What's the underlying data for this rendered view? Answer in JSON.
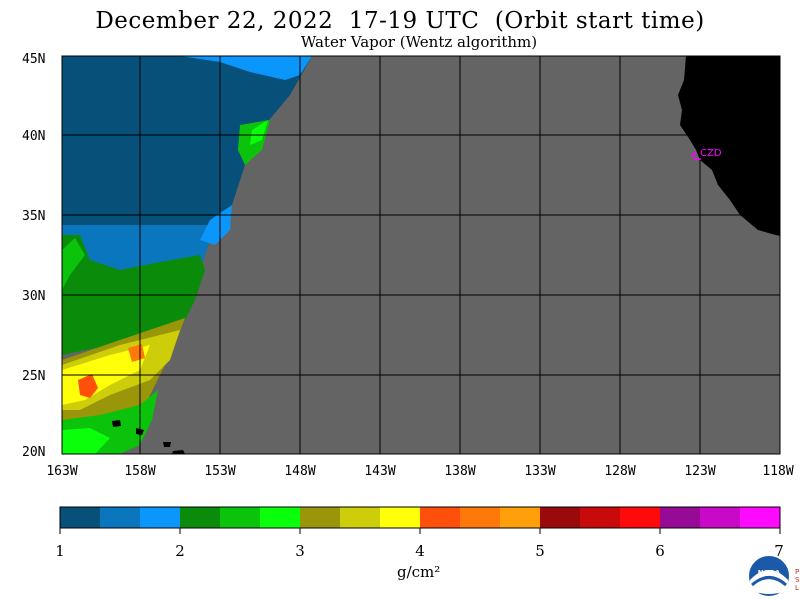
{
  "title": "December 22, 2022  17-19 UTC  (Orbit start time)",
  "subtitle": "Water Vapor (Wentz algorithm)",
  "latitude_labels": [
    "45N",
    "40N",
    "35N",
    "30N",
    "25N",
    "20N"
  ],
  "longitude_labels": [
    "163W",
    "158W",
    "153W",
    "148W",
    "143W",
    "138W",
    "133W",
    "128W",
    "123W",
    "118W"
  ],
  "station_label": "CZD",
  "colorbar": {
    "ticks": [
      "1",
      "2",
      "3",
      "4",
      "5",
      "6",
      "7"
    ],
    "units": "g/cm²",
    "colors": [
      "#06507a",
      "#0a76be",
      "#0a96fa",
      "#0a8c0a",
      "#0ac30a",
      "#0aff0a",
      "#9a960a",
      "#cdcd0a",
      "#ffff0a",
      "#fe500a",
      "#fe780a",
      "#ffa00a",
      "#9b0a0a",
      "#c80a0a",
      "#fe0a0a",
      "#960a96",
      "#c80ac8",
      "#ff0aff"
    ]
  },
  "colors": {
    "land": "#000000",
    "no_data": "#646464",
    "grid": "#000000",
    "station": "#ff00ff"
  },
  "logo_text": "NOAA",
  "side_text": "PSL"
}
